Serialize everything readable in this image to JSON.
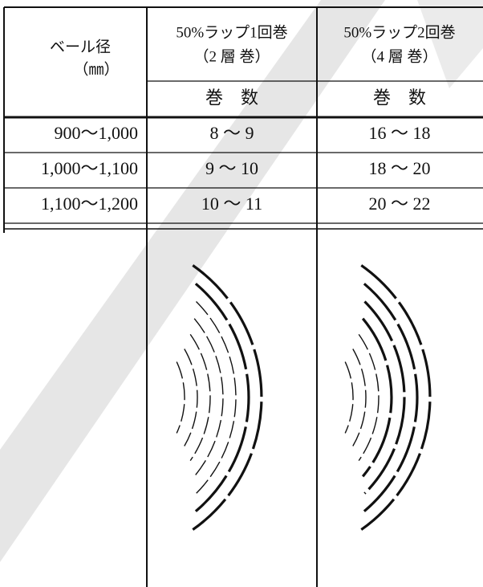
{
  "table": {
    "header": {
      "diameter": "ベール径",
      "diameter_unit": "（㎜）",
      "col1_line1": "50%ラップ1回巻",
      "col1_line2": "（2 層 巻）",
      "col2_line1": "50%ラップ2回巻",
      "col2_line2": "（4 層 巻）",
      "col1_sub": "巻　数",
      "col2_sub": "巻　数"
    },
    "rows": [
      [
        "900〜1,000",
        "8 〜 9",
        "16 〜 18"
      ],
      [
        "1,000〜1,100",
        "9 〜 10",
        "18 〜 20"
      ],
      [
        "1,100〜1,200",
        "10 〜 11",
        "20 〜 22"
      ]
    ]
  }
}
